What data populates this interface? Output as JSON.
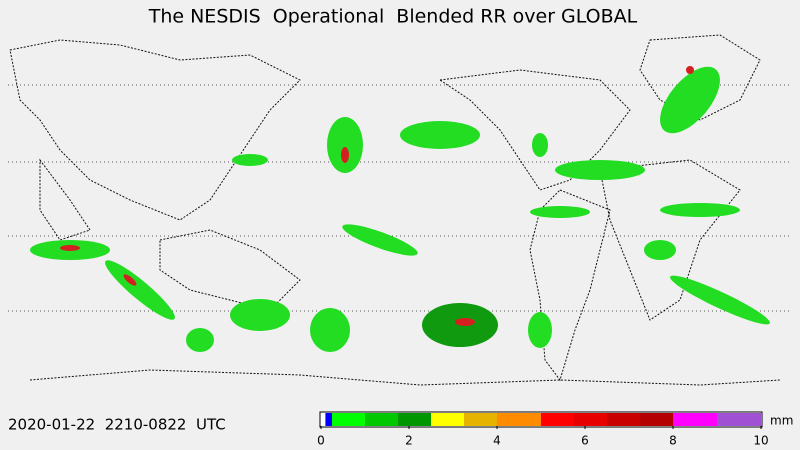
{
  "title": "The NESDIS  Operational  Blended RR over GLOBAL",
  "timestamp": "2020-01-22  2210-0822  UTC",
  "colorbar": {
    "unit": "mm",
    "range": [
      0,
      10
    ],
    "ticks": [
      0,
      2,
      4,
      6,
      8,
      10
    ],
    "bins": [
      0.1,
      0.25,
      1.0,
      1.75,
      2.5,
      3.25,
      4.0,
      5.0,
      5.75,
      6.5,
      7.25,
      8.0,
      9.0,
      10
    ],
    "colors": [
      "#0000ff",
      "#00ff00",
      "#00c800",
      "#009600",
      "#ffff00",
      "#e6b400",
      "#ff8c00",
      "#ff0000",
      "#e60000",
      "#c80000",
      "#b40000",
      "#ff00ff",
      "#a050d2"
    ]
  }
}
